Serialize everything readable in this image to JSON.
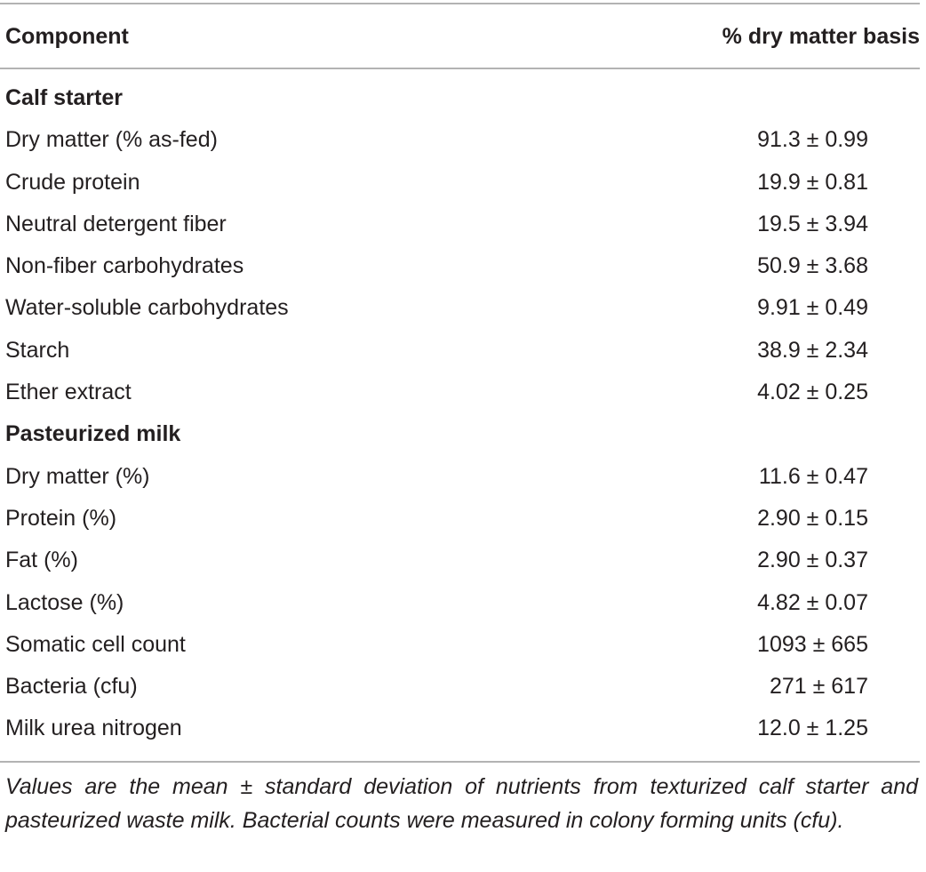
{
  "table": {
    "header": {
      "component": "Component",
      "value": "% dry matter basis"
    },
    "rows": [
      {
        "type": "section",
        "label": "Calf starter",
        "value": ""
      },
      {
        "type": "data",
        "label": "Dry matter (% as-fed)",
        "value": "91.3 ± 0.99"
      },
      {
        "type": "data",
        "label": "Crude protein",
        "value": "19.9 ± 0.81"
      },
      {
        "type": "data",
        "label": "Neutral detergent fiber",
        "value": "19.5 ± 3.94"
      },
      {
        "type": "data",
        "label": "Non-fiber carbohydrates",
        "value": "50.9 ± 3.68"
      },
      {
        "type": "data",
        "label": "Water-soluble carbohydrates",
        "value": "9.91 ± 0.49"
      },
      {
        "type": "data",
        "label": "Starch",
        "value": "38.9 ± 2.34"
      },
      {
        "type": "data",
        "label": "Ether extract",
        "value": "4.02 ± 0.25"
      },
      {
        "type": "section",
        "label": "Pasteurized milk",
        "value": ""
      },
      {
        "type": "data",
        "label": "Dry matter (%)",
        "value": "11.6 ± 0.47"
      },
      {
        "type": "data",
        "label": "Protein (%)",
        "value": "2.90 ± 0.15"
      },
      {
        "type": "data",
        "label": "Fat (%)",
        "value": "2.90 ± 0.37"
      },
      {
        "type": "data",
        "label": "Lactose (%)",
        "value": "4.82 ± 0.07"
      },
      {
        "type": "data",
        "label": "Somatic cell count",
        "value": "1093 ± 665"
      },
      {
        "type": "data",
        "label": "Bacteria (cfu)",
        "value": "271 ± 617"
      },
      {
        "type": "data",
        "label": "Milk urea nitrogen",
        "value": "12.0 ± 1.25"
      }
    ],
    "footnote": "Values are the mean ± standard deviation of nutrients from texturized calf starter and pasteurized waste milk. Bacterial counts were measured in colony forming units (cfu)."
  }
}
